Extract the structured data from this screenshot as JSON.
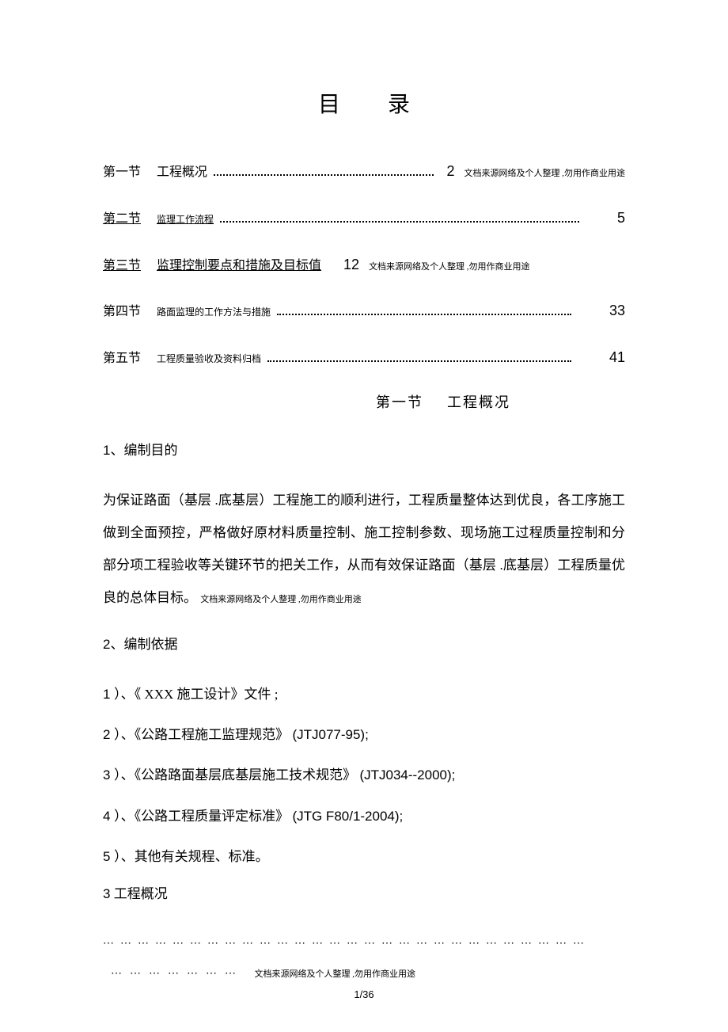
{
  "title": "目录",
  "disclaimer": "文档来源网络及个人整理 ,勿用作商业用途",
  "toc": [
    {
      "section": "第一节",
      "label": "工程概况",
      "page": "2",
      "underlined": false,
      "smallLabel": false,
      "hasNote": true
    },
    {
      "section": "第二节",
      "label": "监理工作流程",
      "page": "5",
      "underlined": true,
      "smallLabel": true,
      "hasNote": false
    },
    {
      "section": "第三节",
      "label": "监理控制要点和措施及目标值",
      "page": "12",
      "underlined": true,
      "smallLabel": false,
      "hasNote": true
    },
    {
      "section": "第四节",
      "label": "路面监理的工作方法与措施",
      "page": "33",
      "underlined": false,
      "smallLabel": true,
      "hasNote": false
    },
    {
      "section": "第五节",
      "label": "工程质量验收及资料归档",
      "page": "41",
      "underlined": false,
      "smallLabel": true,
      "hasNote": false
    }
  ],
  "sectionHeading": {
    "section": "第一节",
    "title": "工程概况"
  },
  "sub1": {
    "num": "1",
    "text": "、编制目的"
  },
  "paragraph1": "为保证路面（基层 .底基层）工程施工的顺利进行，工程质量整体达到优良，各工序施工做到全面预控，严格做好原材料质量控制、施工控制参数、现场施工过程质量控制和分部分项工程验收等关键环节的把关工作，从而有效保证路面（基层 .底基层）工程质量优良的总体目标。",
  "sub2": {
    "num": "2",
    "text": "、编制依据"
  },
  "listItems": [
    {
      "num": "1 ）、",
      "text": "《 XXX 施工设计》文件 ;",
      "code": ""
    },
    {
      "num": "2 ）、",
      "text": "《公路工程施工监理规范》",
      "code": "(JTJ077-95);"
    },
    {
      "num": "3 ）、",
      "text": "《公路路面基层底基层施工技术规范》",
      "code": "(JTJ034--2000);"
    },
    {
      "num": "4 ）、",
      "text": "《公路工程质量评定标准》",
      "code": "(JTG  F80/1-2004);"
    },
    {
      "num": "5 ）、",
      "text": "其他有关规程、标准。",
      "code": ""
    }
  ],
  "sub3": {
    "num": "3",
    "text": " 工程概况"
  },
  "dotsRow1": "⋯⋯⋯⋯⋯⋯⋯⋯⋯⋯⋯⋯⋯⋯⋯⋯⋯⋯⋯⋯⋯⋯⋯⋯⋯⋯⋯⋯",
  "dotsRow2": "⋯⋯⋯⋯⋯⋯⋯",
  "pageNum": "1/36"
}
